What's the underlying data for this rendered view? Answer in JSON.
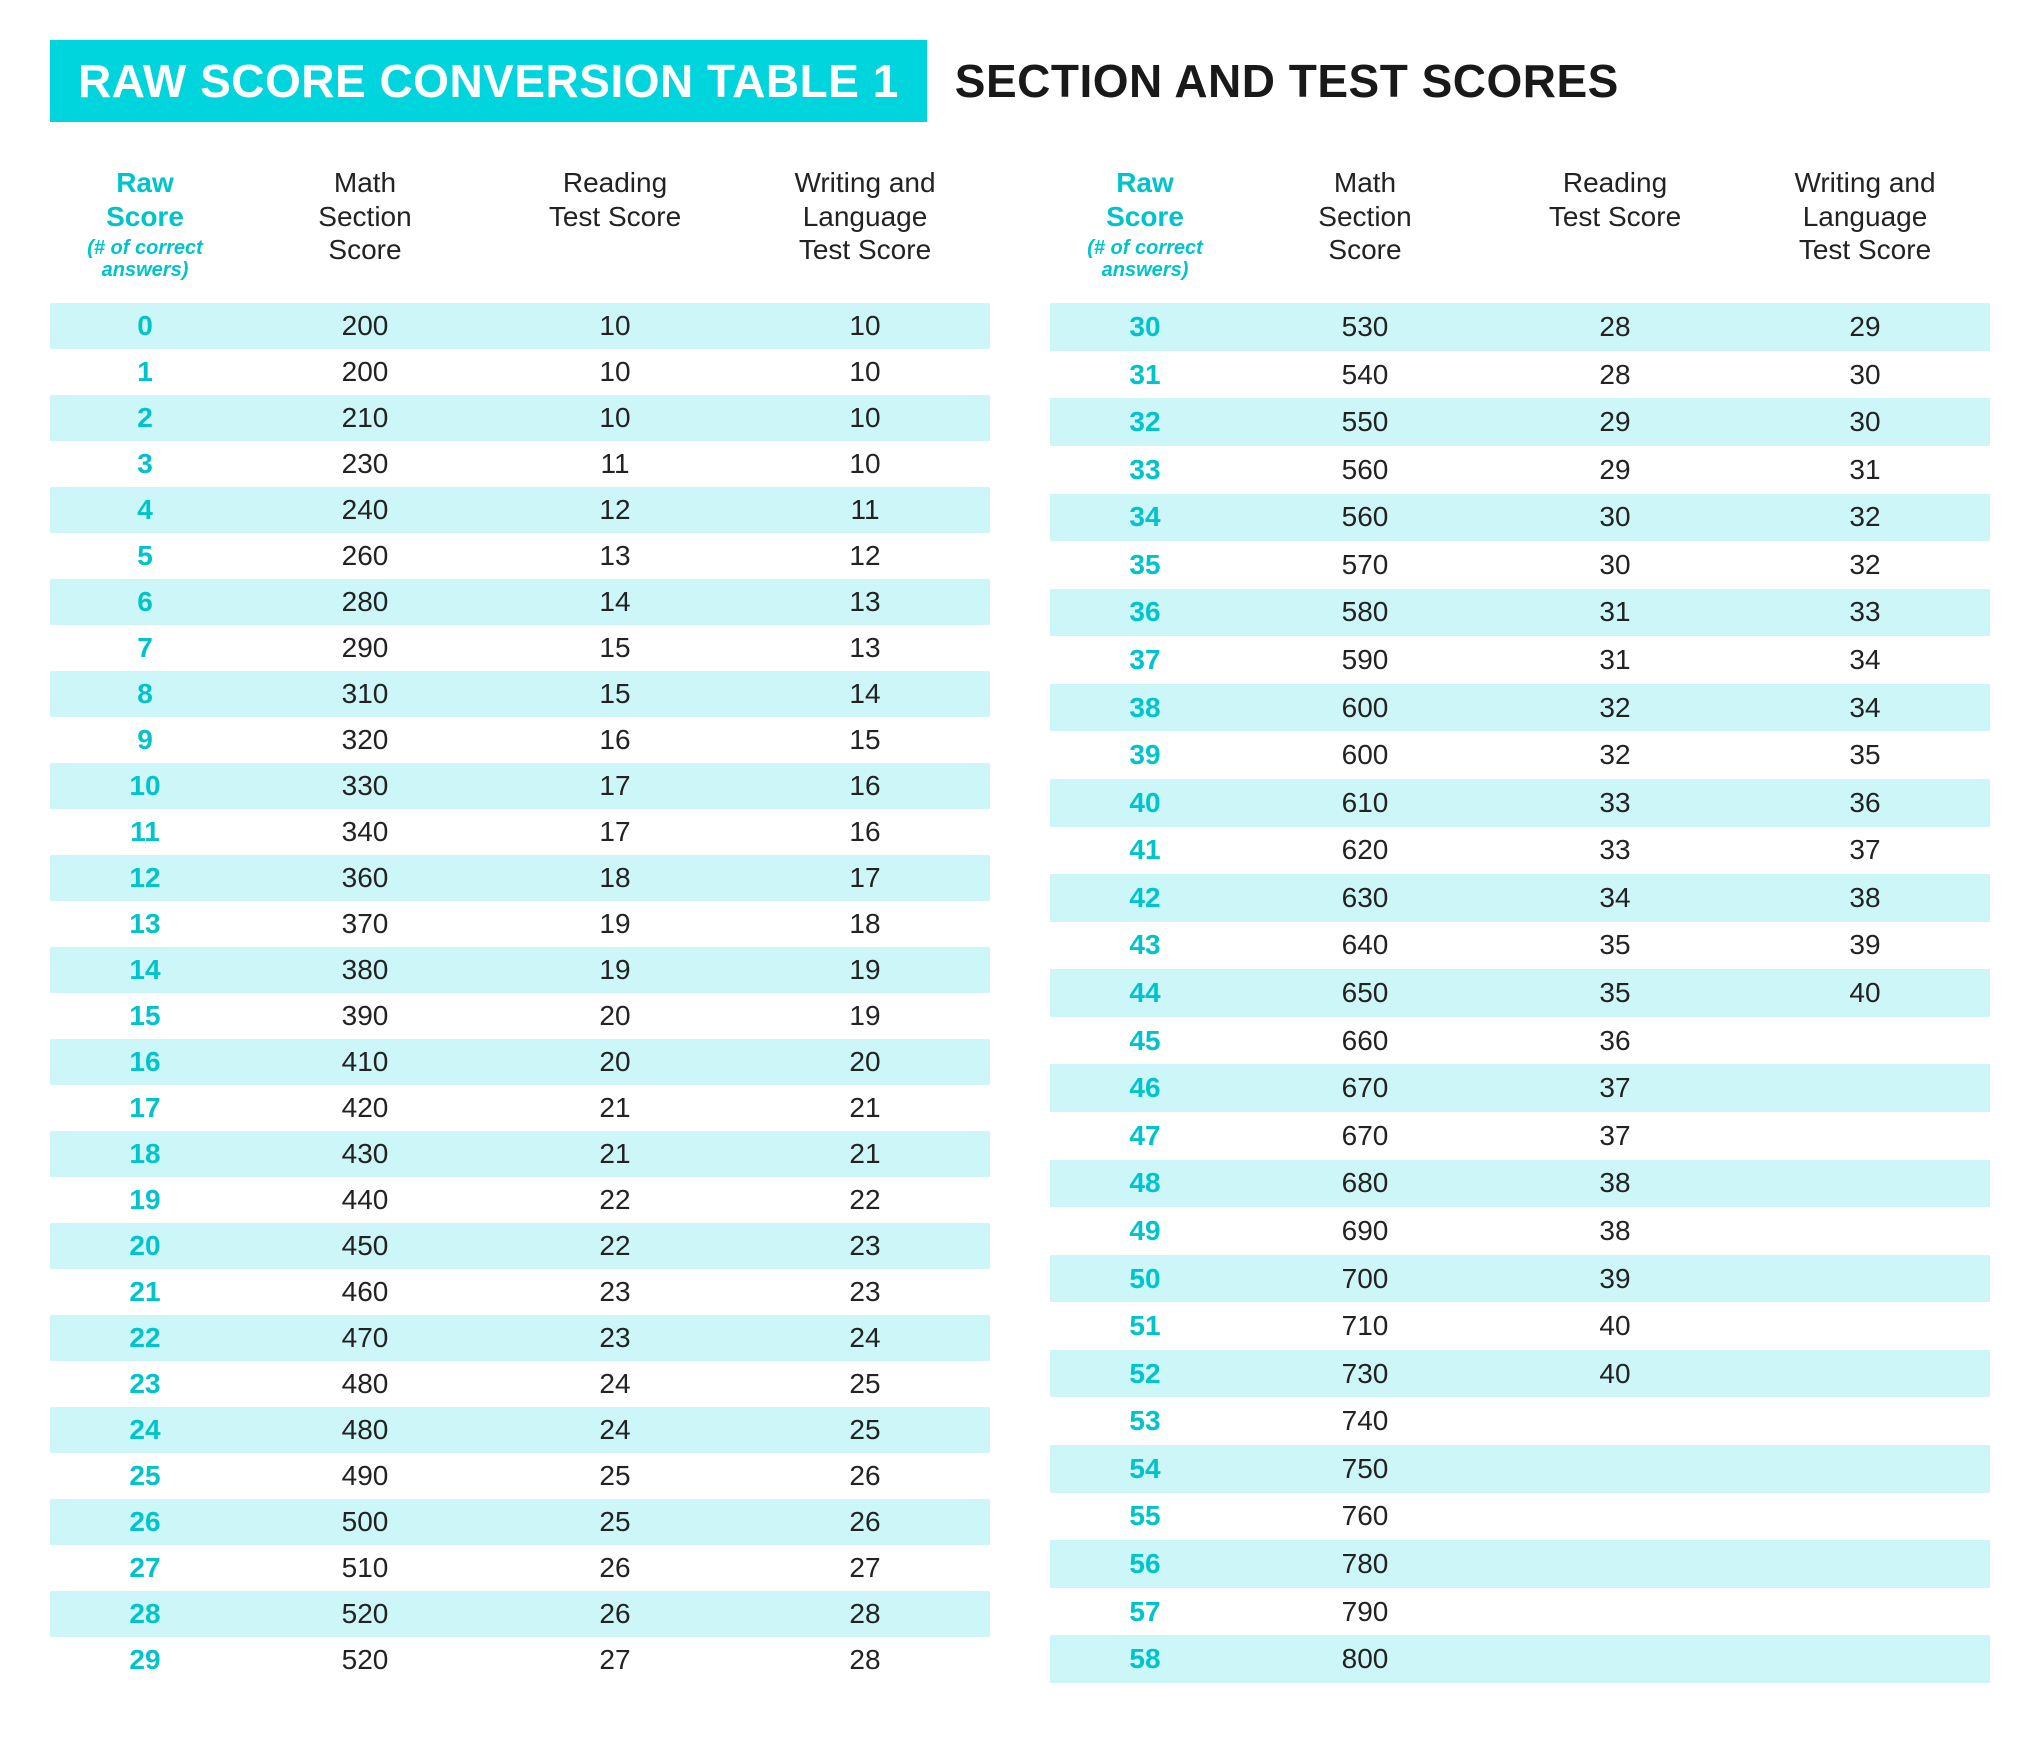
{
  "title_box": "RAW SCORE CONVERSION TABLE 1",
  "title_after": "SECTION AND TEST SCORES",
  "colors": {
    "accent": "#00D4DC",
    "accent_text": "#00C4CC",
    "row_stripe": "#CCF6F8",
    "background": "#ffffff",
    "text": "#222222"
  },
  "headers": {
    "raw_line1": "Raw",
    "raw_line2": "Score",
    "raw_sub1": "(# of correct",
    "raw_sub2": "answers)",
    "math_line1": "Math",
    "math_line2": "Section",
    "math_line3": "Score",
    "reading_line1": "Reading",
    "reading_line2": "Test Score",
    "writing_line1": "Writing and",
    "writing_line2": "Language",
    "writing_line3": "Test Score"
  },
  "left_rows": [
    {
      "raw": "0",
      "math": "200",
      "read": "10",
      "write": "10"
    },
    {
      "raw": "1",
      "math": "200",
      "read": "10",
      "write": "10"
    },
    {
      "raw": "2",
      "math": "210",
      "read": "10",
      "write": "10"
    },
    {
      "raw": "3",
      "math": "230",
      "read": "11",
      "write": "10"
    },
    {
      "raw": "4",
      "math": "240",
      "read": "12",
      "write": "11"
    },
    {
      "raw": "5",
      "math": "260",
      "read": "13",
      "write": "12"
    },
    {
      "raw": "6",
      "math": "280",
      "read": "14",
      "write": "13"
    },
    {
      "raw": "7",
      "math": "290",
      "read": "15",
      "write": "13"
    },
    {
      "raw": "8",
      "math": "310",
      "read": "15",
      "write": "14"
    },
    {
      "raw": "9",
      "math": "320",
      "read": "16",
      "write": "15"
    },
    {
      "raw": "10",
      "math": "330",
      "read": "17",
      "write": "16"
    },
    {
      "raw": "11",
      "math": "340",
      "read": "17",
      "write": "16"
    },
    {
      "raw": "12",
      "math": "360",
      "read": "18",
      "write": "17"
    },
    {
      "raw": "13",
      "math": "370",
      "read": "19",
      "write": "18"
    },
    {
      "raw": "14",
      "math": "380",
      "read": "19",
      "write": "19"
    },
    {
      "raw": "15",
      "math": "390",
      "read": "20",
      "write": "19"
    },
    {
      "raw": "16",
      "math": "410",
      "read": "20",
      "write": "20"
    },
    {
      "raw": "17",
      "math": "420",
      "read": "21",
      "write": "21"
    },
    {
      "raw": "18",
      "math": "430",
      "read": "21",
      "write": "21"
    },
    {
      "raw": "19",
      "math": "440",
      "read": "22",
      "write": "22"
    },
    {
      "raw": "20",
      "math": "450",
      "read": "22",
      "write": "23"
    },
    {
      "raw": "21",
      "math": "460",
      "read": "23",
      "write": "23"
    },
    {
      "raw": "22",
      "math": "470",
      "read": "23",
      "write": "24"
    },
    {
      "raw": "23",
      "math": "480",
      "read": "24",
      "write": "25"
    },
    {
      "raw": "24",
      "math": "480",
      "read": "24",
      "write": "25"
    },
    {
      "raw": "25",
      "math": "490",
      "read": "25",
      "write": "26"
    },
    {
      "raw": "26",
      "math": "500",
      "read": "25",
      "write": "26"
    },
    {
      "raw": "27",
      "math": "510",
      "read": "26",
      "write": "27"
    },
    {
      "raw": "28",
      "math": "520",
      "read": "26",
      "write": "28"
    },
    {
      "raw": "29",
      "math": "520",
      "read": "27",
      "write": "28"
    }
  ],
  "right_rows": [
    {
      "raw": "30",
      "math": "530",
      "read": "28",
      "write": "29"
    },
    {
      "raw": "31",
      "math": "540",
      "read": "28",
      "write": "30"
    },
    {
      "raw": "32",
      "math": "550",
      "read": "29",
      "write": "30"
    },
    {
      "raw": "33",
      "math": "560",
      "read": "29",
      "write": "31"
    },
    {
      "raw": "34",
      "math": "560",
      "read": "30",
      "write": "32"
    },
    {
      "raw": "35",
      "math": "570",
      "read": "30",
      "write": "32"
    },
    {
      "raw": "36",
      "math": "580",
      "read": "31",
      "write": "33"
    },
    {
      "raw": "37",
      "math": "590",
      "read": "31",
      "write": "34"
    },
    {
      "raw": "38",
      "math": "600",
      "read": "32",
      "write": "34"
    },
    {
      "raw": "39",
      "math": "600",
      "read": "32",
      "write": "35"
    },
    {
      "raw": "40",
      "math": "610",
      "read": "33",
      "write": "36"
    },
    {
      "raw": "41",
      "math": "620",
      "read": "33",
      "write": "37"
    },
    {
      "raw": "42",
      "math": "630",
      "read": "34",
      "write": "38"
    },
    {
      "raw": "43",
      "math": "640",
      "read": "35",
      "write": "39"
    },
    {
      "raw": "44",
      "math": "650",
      "read": "35",
      "write": "40"
    },
    {
      "raw": "45",
      "math": "660",
      "read": "36",
      "write": ""
    },
    {
      "raw": "46",
      "math": "670",
      "read": "37",
      "write": ""
    },
    {
      "raw": "47",
      "math": "670",
      "read": "37",
      "write": ""
    },
    {
      "raw": "48",
      "math": "680",
      "read": "38",
      "write": ""
    },
    {
      "raw": "49",
      "math": "690",
      "read": "38",
      "write": ""
    },
    {
      "raw": "50",
      "math": "700",
      "read": "39",
      "write": ""
    },
    {
      "raw": "51",
      "math": "710",
      "read": "40",
      "write": ""
    },
    {
      "raw": "52",
      "math": "730",
      "read": "40",
      "write": ""
    },
    {
      "raw": "53",
      "math": "740",
      "read": "",
      "write": ""
    },
    {
      "raw": "54",
      "math": "750",
      "read": "",
      "write": ""
    },
    {
      "raw": "55",
      "math": "760",
      "read": "",
      "write": ""
    },
    {
      "raw": "56",
      "math": "780",
      "read": "",
      "write": ""
    },
    {
      "raw": "57",
      "math": "790",
      "read": "",
      "write": ""
    },
    {
      "raw": "58",
      "math": "800",
      "read": "",
      "write": ""
    }
  ]
}
